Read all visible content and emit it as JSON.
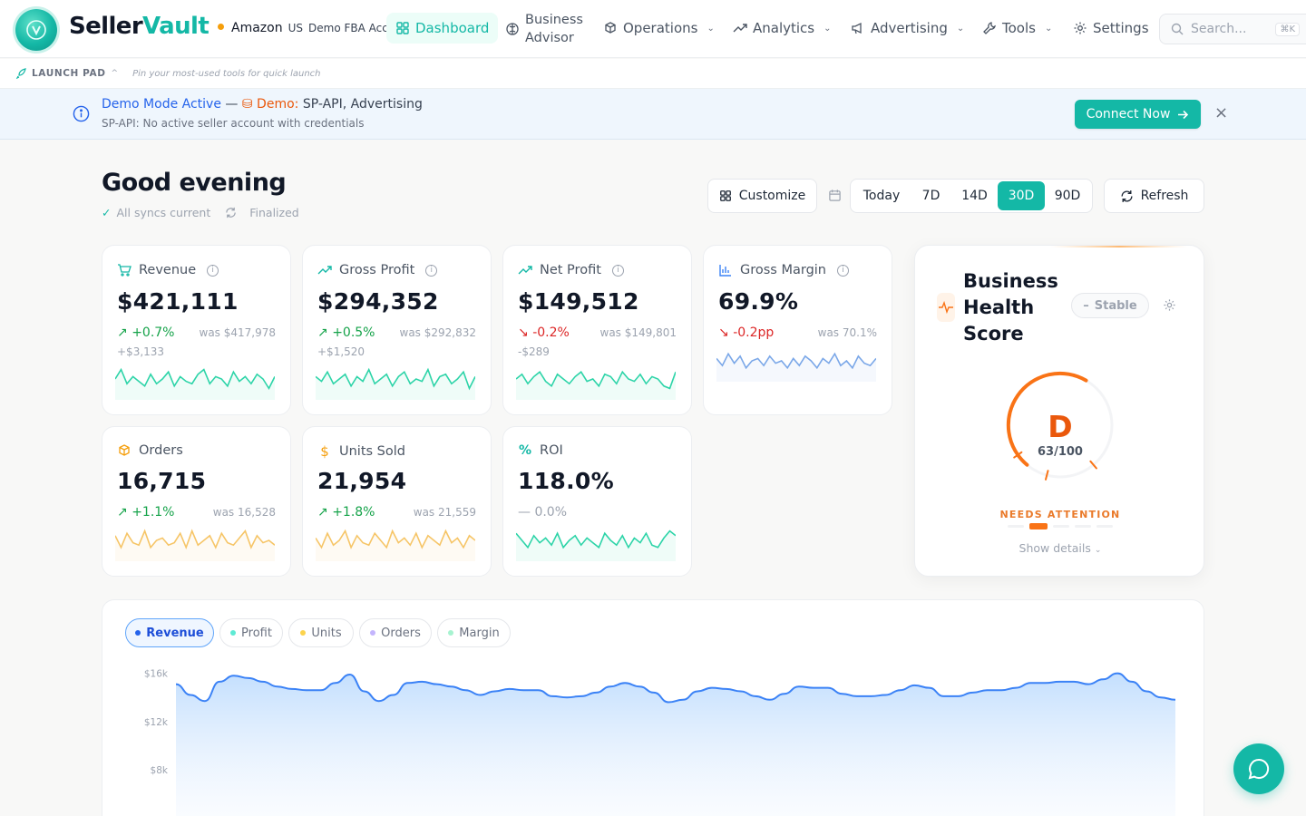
{
  "brand": {
    "name_a": "Seller",
    "name_b": "Vault"
  },
  "marketplace": {
    "name": "Amazon",
    "country": "US",
    "account": "Demo FBA Account"
  },
  "nav": [
    {
      "label": "Dashboard",
      "icon": "grid-icon"
    },
    {
      "label_1": "Business",
      "label_2": "Advisor",
      "icon": "brain-icon"
    },
    {
      "label": "Operations",
      "icon": "boxes-icon"
    },
    {
      "label": "Analytics",
      "icon": "trend-icon"
    },
    {
      "label": "Advertising",
      "icon": "megaphone-icon"
    },
    {
      "label": "Tools",
      "icon": "wrench-icon"
    },
    {
      "label": "Settings",
      "icon": "gear-icon"
    }
  ],
  "search": {
    "placeholder": "Search...",
    "shortcut": "⌘K"
  },
  "launchpad": {
    "title": "LAUNCH PAD",
    "hint": "Pin your most-used tools for quick launch"
  },
  "banner": {
    "title": "Demo Mode Active",
    "sep": "—",
    "demo_label": "Demo:",
    "demo_value": "SP-API, Advertising",
    "subtitle": "SP-API: No active seller account with credentials",
    "cta": "Connect Now"
  },
  "header": {
    "greeting": "Good evening",
    "sync_status": "All syncs current",
    "sync_state": "Finalized"
  },
  "toolbar": {
    "customize": "Customize",
    "refresh": "Refresh",
    "ranges": [
      "Today",
      "7D",
      "14D",
      "30D",
      "90D"
    ],
    "active_range": "30D"
  },
  "metrics": [
    {
      "label": "Revenue",
      "icon": "cart-icon",
      "value": "$421,111",
      "change": "+0.7%",
      "trend": "up",
      "was": "was $417,978",
      "abs": "+$3,133",
      "color": "#2dd4a8"
    },
    {
      "label": "Gross Profit",
      "icon": "trend-up-icon",
      "value": "$294,352",
      "change": "+0.5%",
      "trend": "up",
      "was": "was $292,832",
      "abs": "+$1,520",
      "color": "#2dd4a8"
    },
    {
      "label": "Net Profit",
      "icon": "trend-up-icon",
      "value": "$149,512",
      "change": "-0.2%",
      "trend": "down",
      "was": "was $149,801",
      "abs": "-$289",
      "color": "#2dd4a8"
    },
    {
      "label": "Gross Margin",
      "icon": "bar-chart-icon",
      "value": "69.9%",
      "change": "-0.2pp",
      "trend": "down",
      "was": "was 70.1%",
      "abs": "",
      "color": "#7aa7e8"
    },
    {
      "label": "Orders",
      "icon": "box-icon",
      "value": "16,715",
      "change": "+1.1%",
      "trend": "up",
      "was": "was 16,528",
      "abs": "",
      "color": "#f6c567"
    },
    {
      "label": "Units Sold",
      "icon": "dollar-icon",
      "value": "21,954",
      "change": "+1.8%",
      "trend": "up",
      "was": "was 21,559",
      "abs": "",
      "color": "#f6c567"
    },
    {
      "label": "ROI",
      "icon": "percent-icon",
      "value": "118.0%",
      "change": "0.0%",
      "trend": "flat",
      "was": "",
      "abs": "",
      "color": "#2dd4a8"
    }
  ],
  "health": {
    "title": "Business Health Score",
    "status": "Stable",
    "grade": "D",
    "score": "63/100",
    "score_value": 63,
    "label": "NEEDS ATTENTION",
    "details": "Show details"
  },
  "chart_tabs": [
    {
      "label": "Revenue",
      "color": "#2563eb",
      "active": true
    },
    {
      "label": "Profit",
      "color": "#5eead4",
      "active": false
    },
    {
      "label": "Units",
      "color": "#fcd34d",
      "active": false
    },
    {
      "label": "Orders",
      "color": "#c4b5fd",
      "active": false
    },
    {
      "label": "Margin",
      "color": "#a7f3d0",
      "active": false
    }
  ],
  "chart_data": {
    "type": "area",
    "series": [
      {
        "name": "Revenue",
        "values": [
          15.1,
          14.2,
          13.7,
          15.3,
          15.8,
          15.6,
          15.3,
          14.9,
          14.7,
          14.6,
          14.6,
          15.2,
          15.9,
          14.5,
          13.7,
          14.2,
          15.2,
          15.3,
          15.1,
          14.9,
          14.6,
          14.2,
          14.5,
          14.7,
          14.6,
          14.6,
          14.1,
          14.0,
          14.1,
          14.4,
          14.9,
          15.2,
          14.9,
          14.4,
          13.6,
          13.8,
          14.5,
          14.8,
          14.7,
          14.5,
          14.1,
          13.8,
          14.3,
          14.9,
          14.8,
          14.8,
          14.3,
          14.1,
          14.1,
          14.2,
          14.6,
          15.0,
          14.8,
          14.1,
          14.1,
          14.4,
          14.6,
          14.6,
          14.8,
          15.2,
          15.2,
          15.3,
          15.3,
          15.1,
          15.5,
          16.0,
          15.3,
          14.5,
          14.0,
          13.8
        ]
      }
    ],
    "yticks": [
      "$16k",
      "$12k",
      "$8k"
    ],
    "ytick_values": [
      16,
      12,
      8
    ],
    "ylim": [
      4,
      16.8
    ],
    "grid": false
  },
  "colors": {
    "accent": "#14b8a6",
    "up": "#16a34a",
    "down": "#dc2626",
    "warning": "#ea580c",
    "chart": "#3b82f6"
  }
}
